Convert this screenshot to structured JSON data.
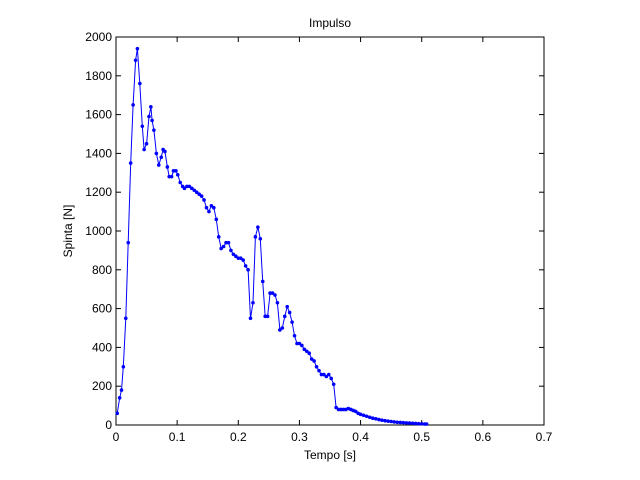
{
  "chart_data": {
    "type": "line",
    "title": "Impulso",
    "xlabel": "Tempo [s]",
    "ylabel": "Spinta [N]",
    "xlim": [
      0,
      0.7
    ],
    "ylim": [
      0,
      2000
    ],
    "grid": false,
    "xticks": [
      0,
      0.1,
      0.2,
      0.3,
      0.4,
      0.5,
      0.6,
      0.7
    ],
    "xtick_labels": [
      "0",
      "0.1",
      "0.2",
      "0.3",
      "0.4",
      "0.5",
      "0.6",
      "0.7"
    ],
    "yticks": [
      0,
      200,
      400,
      600,
      800,
      1000,
      1200,
      1400,
      1600,
      1800,
      2000
    ],
    "ytick_labels": [
      "0",
      "200",
      "400",
      "600",
      "800",
      "1000",
      "1200",
      "1400",
      "1600",
      "1800",
      "2000"
    ],
    "series": [
      {
        "color": "#0000ff",
        "marker": "dot",
        "x": [
          0.002,
          0.006,
          0.009,
          0.012,
          0.016,
          0.02,
          0.024,
          0.028,
          0.032,
          0.035,
          0.039,
          0.043,
          0.046,
          0.05,
          0.054,
          0.057,
          0.059,
          0.062,
          0.066,
          0.07,
          0.074,
          0.077,
          0.08,
          0.084,
          0.087,
          0.091,
          0.094,
          0.098,
          0.101,
          0.105,
          0.109,
          0.112,
          0.116,
          0.12,
          0.124,
          0.128,
          0.132,
          0.136,
          0.14,
          0.144,
          0.148,
          0.152,
          0.156,
          0.16,
          0.164,
          0.168,
          0.172,
          0.176,
          0.18,
          0.184,
          0.188,
          0.192,
          0.196,
          0.2,
          0.204,
          0.208,
          0.212,
          0.216,
          0.22,
          0.224,
          0.228,
          0.232,
          0.236,
          0.24,
          0.244,
          0.248,
          0.252,
          0.256,
          0.26,
          0.264,
          0.268,
          0.272,
          0.276,
          0.28,
          0.284,
          0.288,
          0.292,
          0.296,
          0.3,
          0.304,
          0.308,
          0.312,
          0.316,
          0.32,
          0.324,
          0.328,
          0.332,
          0.336,
          0.34,
          0.344,
          0.348,
          0.352,
          0.356,
          0.36,
          0.364,
          0.368,
          0.372,
          0.376,
          0.38,
          0.384,
          0.388,
          0.392,
          0.396,
          0.4,
          0.405,
          0.41,
          0.415,
          0.42,
          0.425,
          0.43,
          0.435,
          0.44,
          0.445,
          0.45,
          0.455,
          0.46,
          0.465,
          0.47,
          0.475,
          0.48,
          0.485,
          0.49,
          0.495,
          0.5,
          0.505,
          0.508
        ],
        "y": [
          60,
          140,
          180,
          300,
          550,
          940,
          1350,
          1650,
          1880,
          1940,
          1760,
          1540,
          1420,
          1450,
          1590,
          1640,
          1570,
          1520,
          1400,
          1340,
          1380,
          1420,
          1410,
          1330,
          1280,
          1280,
          1310,
          1310,
          1290,
          1250,
          1230,
          1220,
          1230,
          1230,
          1220,
          1210,
          1200,
          1190,
          1180,
          1160,
          1120,
          1100,
          1130,
          1120,
          1060,
          970,
          910,
          920,
          940,
          940,
          900,
          880,
          870,
          860,
          860,
          850,
          820,
          800,
          550,
          630,
          970,
          1020,
          960,
          740,
          560,
          560,
          680,
          680,
          670,
          630,
          490,
          500,
          560,
          610,
          580,
          530,
          460,
          420,
          420,
          410,
          390,
          380,
          370,
          340,
          330,
          300,
          280,
          260,
          260,
          250,
          260,
          240,
          210,
          90,
          80,
          80,
          80,
          80,
          85,
          80,
          75,
          70,
          60,
          55,
          50,
          45,
          40,
          35,
          32,
          28,
          25,
          22,
          20,
          18,
          16,
          14,
          13,
          12,
          11,
          10,
          9,
          8,
          7,
          6,
          5,
          5
        ]
      }
    ]
  }
}
